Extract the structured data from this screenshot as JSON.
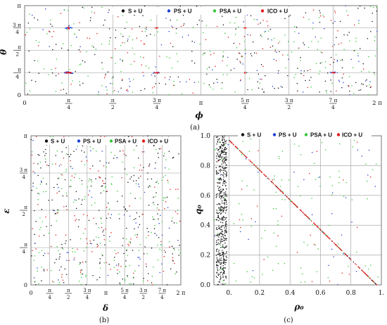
{
  "legend_colors": {
    "S + U": "#111111",
    "PS + U": "#1f3fd6",
    "PSA + U": "#36c83a",
    "ICO + U": "#e01b1b"
  },
  "chart_data": [
    {
      "panel": "(a)",
      "type": "scatter",
      "xlabel": "ϕ",
      "ylabel": "θ",
      "xlim": [
        0,
        6.2832
      ],
      "ylim": [
        0,
        3.1416
      ],
      "grid": true,
      "legend": "top",
      "xticks": [
        {
          "v": 0,
          "num": "0"
        },
        {
          "v": 0.7854,
          "num": "π",
          "den": "4"
        },
        {
          "v": 1.5708,
          "num": "π",
          "den": "2"
        },
        {
          "v": 2.3562,
          "num": "3 π",
          "den": "4"
        },
        {
          "v": 3.1416,
          "num": "π"
        },
        {
          "v": 3.927,
          "num": "5 π",
          "den": "4"
        },
        {
          "v": 4.7124,
          "num": "3 π",
          "den": "2"
        },
        {
          "v": 5.4978,
          "num": "7 π",
          "den": "4"
        },
        {
          "v": 6.2832,
          "num": "2 π"
        }
      ],
      "yticks": [
        {
          "v": 0,
          "num": "0"
        },
        {
          "v": 0.7854,
          "num": "π",
          "den": "4"
        },
        {
          "v": 1.5708,
          "num": "π",
          "den": "2"
        },
        {
          "v": 2.3562,
          "num": "3 π",
          "den": "4"
        },
        {
          "v": 3.1416,
          "num": "π"
        }
      ],
      "series": [
        {
          "name": "S + U",
          "color": "#111111",
          "count": 190,
          "distribution": "uniform"
        },
        {
          "name": "PS + U",
          "color": "#1f3fd6",
          "count": 80,
          "distribution": "uniform",
          "clusters": [
            [
              0.785,
              0.785,
              0.12,
              0.05,
              24
            ],
            [
              0.785,
              2.356,
              0.1,
              0.05,
              14
            ],
            [
              2.356,
              0.785,
              0.1,
              0.04,
              12
            ],
            [
              5.498,
              0.785,
              0.1,
              0.04,
              12
            ]
          ]
        },
        {
          "name": "PSA + U",
          "color": "#36c83a",
          "count": 190,
          "distribution": "uniform"
        },
        {
          "name": "ICO + U",
          "color": "#e01b1b",
          "count": 110,
          "distribution": "uniform",
          "clusters": [
            [
              0.785,
              0.785,
              0.07,
              0.025,
              40
            ],
            [
              0.785,
              2.356,
              0.02,
              0.05,
              12
            ],
            [
              2.356,
              0.785,
              0.05,
              0.02,
              12
            ],
            [
              2.356,
              2.356,
              0.04,
              0.015,
              8
            ],
            [
              3.927,
              2.356,
              0.03,
              0.015,
              10
            ],
            [
              3.927,
              0.785,
              0.01,
              0.03,
              6
            ],
            [
              5.498,
              0.785,
              0.05,
              0.02,
              12
            ]
          ]
        }
      ]
    },
    {
      "panel": "(b)",
      "type": "scatter",
      "xlabel": "δ",
      "ylabel": "ε",
      "xlim": [
        0,
        6.2832
      ],
      "ylim": [
        0,
        3.1416
      ],
      "grid": true,
      "legend": "top",
      "xticks": [
        {
          "v": 0,
          "num": "0"
        },
        {
          "v": 0.7854,
          "num": "π",
          "den": "4"
        },
        {
          "v": 1.5708,
          "num": "π",
          "den": "2"
        },
        {
          "v": 2.3562,
          "num": "3 π",
          "den": "4"
        },
        {
          "v": 3.1416,
          "num": "π"
        },
        {
          "v": 3.927,
          "num": "5 π",
          "den": "4"
        },
        {
          "v": 4.7124,
          "num": "3 π",
          "den": "2"
        },
        {
          "v": 5.4978,
          "num": "7 π",
          "den": "4"
        },
        {
          "v": 6.2832,
          "num": "2 π"
        }
      ],
      "yticks": [
        {
          "v": 0,
          "num": "0"
        },
        {
          "v": 0.7854,
          "num": "π",
          "den": "4"
        },
        {
          "v": 1.5708,
          "num": "π",
          "den": "2"
        },
        {
          "v": 2.3562,
          "num": "3 π",
          "den": "4"
        },
        {
          "v": 3.1416,
          "num": "π"
        }
      ],
      "series": [
        {
          "name": "S + U",
          "color": "#111111",
          "count": 230,
          "distribution": "uniform"
        },
        {
          "name": "PS + U",
          "color": "#1f3fd6",
          "count": 60,
          "distribution": "uniform"
        },
        {
          "name": "PSA + U",
          "color": "#36c83a",
          "count": 180,
          "distribution": "uniform"
        },
        {
          "name": "ICO + U",
          "color": "#e01b1b",
          "count": 130,
          "distribution": "uniform"
        }
      ]
    },
    {
      "panel": "(c)",
      "type": "scatter",
      "xlabel": "ρ₀",
      "ylabel": "q₀",
      "xlim": [
        -0.1,
        1.0
      ],
      "ylim": [
        0,
        1.0
      ],
      "grid": true,
      "legend": "top",
      "xticks": [
        {
          "v": 0,
          "num": "0."
        },
        {
          "v": 0.2,
          "num": "0.2"
        },
        {
          "v": 0.4,
          "num": "0.4"
        },
        {
          "v": 0.6,
          "num": "0.6"
        },
        {
          "v": 0.8,
          "num": "0.8"
        },
        {
          "v": 1.0,
          "num": "1."
        }
      ],
      "yticks": [
        {
          "v": 0,
          "num": "0.0"
        },
        {
          "v": 0.2,
          "num": "0.2"
        },
        {
          "v": 0.4,
          "num": "0.4"
        },
        {
          "v": 0.6,
          "num": "0.6"
        },
        {
          "v": 0.8,
          "num": "0.8"
        },
        {
          "v": 1.0,
          "num": "1.0"
        }
      ],
      "series": [
        {
          "name": "S + U",
          "color": "#111111",
          "count": 500,
          "distribution": "band",
          "x_range": [
            -0.085,
            -0.015
          ],
          "y_range": [
            0,
            1
          ],
          "diagonal": 60
        },
        {
          "name": "PS + U",
          "color": "#1f3fd6",
          "count": 30,
          "distribution": "uniform"
        },
        {
          "name": "PSA + U",
          "color": "#36c83a",
          "count": 110,
          "distribution": "uniform",
          "diagonal": 40
        },
        {
          "name": "ICO + U",
          "color": "#e01b1b",
          "count": 25,
          "distribution": "uniform",
          "diagonal": 220
        }
      ]
    }
  ],
  "captions": [
    "(a)",
    "(b)",
    "(c)"
  ],
  "legend_labels": [
    "S + U",
    "PS + U",
    "PSA + U",
    "ICO + U"
  ]
}
